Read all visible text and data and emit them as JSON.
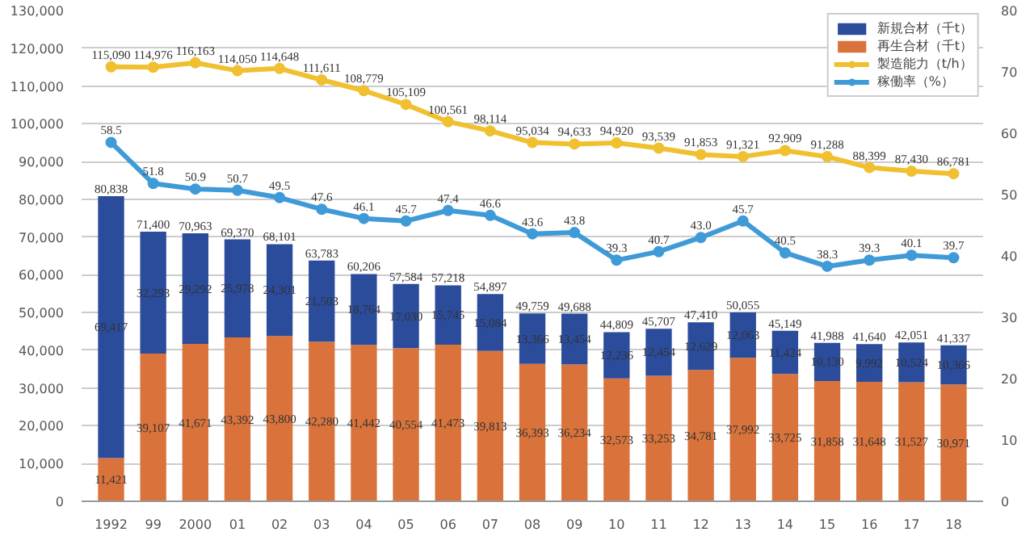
{
  "chart_data": {
    "type": "bar",
    "stacked": true,
    "grid": "y",
    "legend": "top right",
    "marker": "circle",
    "categories": [
      "1992",
      "99",
      "2000",
      "01",
      "02",
      "03",
      "04",
      "05",
      "06",
      "07",
      "08",
      "09",
      "10",
      "11",
      "12",
      "13",
      "14",
      "15",
      "16",
      "17",
      "18"
    ],
    "series": [
      {
        "name": "再生合材（千t）",
        "color": "#d9733b",
        "values": [
          11421,
          39107,
          41671,
          43392,
          43800,
          42280,
          41442,
          40554,
          41473,
          39813,
          36393,
          36234,
          32573,
          33253,
          34781,
          37992,
          33725,
          31858,
          31648,
          31527,
          30971
        ],
        "value_labels": [
          "11,421",
          "39,107",
          "41,671",
          "43,392",
          "43,800",
          "42,280",
          "41,442",
          "40,554",
          "41,473",
          "39,813",
          "36,393",
          "36,234",
          "32,573",
          "33,253",
          "34,781",
          "37,992",
          "33,725",
          "31,858",
          "31,648",
          "31,527",
          "30,971"
        ]
      },
      {
        "name": "新規合材（千t）",
        "color": "#2b4b9b",
        "values": [
          69417,
          32293,
          29292,
          25978,
          24301,
          21503,
          18764,
          17030,
          15745,
          15084,
          13366,
          13454,
          12236,
          12454,
          12629,
          12063,
          11424,
          10130,
          9992,
          10524,
          10366
        ],
        "value_labels": [
          "69,417",
          "32,293",
          "29,292",
          "25,978",
          "24,301",
          "21,503",
          "18,764",
          "17,030",
          "15,745",
          "15,084",
          "13,366",
          "13,454",
          "12,236",
          "12,454",
          "12,629",
          "12,063",
          "11,424",
          "10,130",
          "9,992",
          "10,524",
          "10,366"
        ]
      },
      {
        "name": "製造能力（t/h）",
        "type": "line",
        "color": "#f0c030",
        "values": [
          115090,
          114976,
          116163,
          114050,
          114648,
          111611,
          108779,
          105109,
          100561,
          98114,
          95034,
          94633,
          94920,
          93539,
          91853,
          91321,
          92909,
          91288,
          88399,
          87430,
          86781
        ],
        "value_labels": [
          "115,090",
          "114,976",
          "116,163",
          "114,050",
          "114,648",
          "111,611",
          "108,779",
          "105,109",
          "100,561",
          "98,114",
          "95,034",
          "94,633",
          "94,920",
          "93,539",
          "91,853",
          "91,321",
          "92,909",
          "91,288",
          "88,399",
          "87,430",
          "86,781"
        ]
      },
      {
        "name": "稼働率（%）",
        "type": "line",
        "axis": "y2",
        "color": "#3f9ad8",
        "values": [
          58.5,
          51.8,
          50.9,
          50.7,
          49.5,
          47.6,
          46.1,
          45.7,
          47.4,
          46.6,
          43.6,
          43.8,
          39.3,
          40.7,
          43.0,
          45.7,
          40.5,
          38.3,
          39.3,
          40.1,
          39.7
        ],
        "value_labels": [
          "58.5",
          "51.8",
          "50.9",
          "50.7",
          "49.5",
          "47.6",
          "46.1",
          "45.7",
          "47.4",
          "46.6",
          "43.6",
          "43.8",
          "39.3",
          "40.7",
          "43.0",
          "45.7",
          "40.5",
          "38.3",
          "39.3",
          "40.1",
          "39.7"
        ]
      }
    ],
    "totals": [
      "80,838",
      "71,400",
      "70,963",
      "69,370",
      "68,101",
      "63,783",
      "60,206",
      "57,584",
      "57,218",
      "54,897",
      "49,759",
      "49,688",
      "44,809",
      "45,707",
      "47,410",
      "50,055",
      "45,149",
      "41,988",
      "41,640",
      "42,051",
      "41,337"
    ],
    "ylim": [
      0,
      130000
    ],
    "yticks": [
      0,
      {
        "value": 10000,
        "label": "10,000"
      },
      {
        "value": 20000,
        "label": "20,000"
      },
      {
        "value": 30000,
        "label": "30,000"
      },
      {
        "value": 40000,
        "label": "40,000"
      },
      {
        "value": 50000,
        "label": "50,000"
      },
      {
        "value": 60000,
        "label": "60,000"
      },
      {
        "value": 70000,
        "label": "70,000"
      },
      {
        "value": 80000,
        "label": "80,000"
      },
      {
        "value": 90000,
        "label": "90,000"
      },
      {
        "value": 100000,
        "label": "100,000"
      },
      {
        "value": 110000,
        "label": "110,000"
      },
      {
        "value": 120000,
        "label": "120,000"
      },
      {
        "value": 130000,
        "label": "130,000"
      }
    ],
    "y2lim": [
      0,
      80
    ],
    "y2ticks": [
      0,
      10,
      20,
      30,
      40,
      50,
      60,
      70,
      80
    ]
  }
}
